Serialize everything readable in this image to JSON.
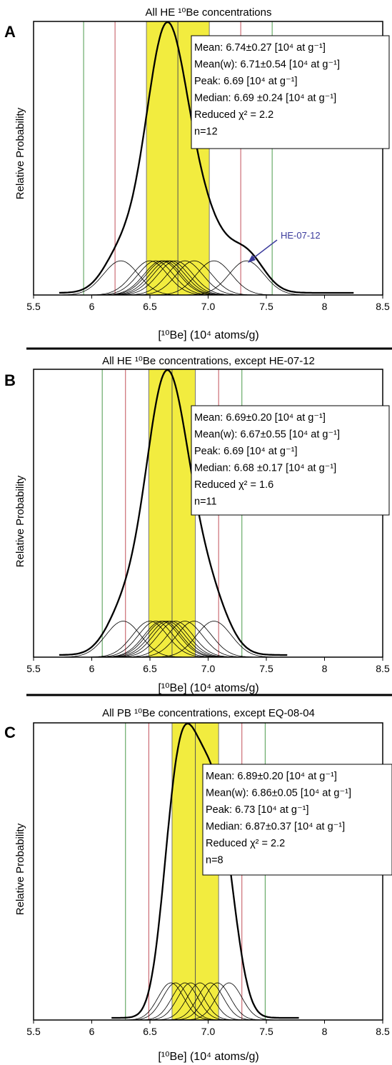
{
  "chart_data": [
    {
      "type": "line",
      "panel": "A",
      "title": "All HE ¹⁰Be concentrations",
      "xlabel": "[¹⁰Be] (10⁴ atoms/g)",
      "ylabel": "Relative Probability",
      "xlim": [
        5.5,
        8.5
      ],
      "xticks": [
        "5.5",
        "6",
        "6.5",
        "7.0",
        "7.5",
        "8",
        "8.5"
      ],
      "mean": 6.74,
      "band": [
        6.47,
        7.01
      ],
      "red_lines": [
        6.2,
        7.28
      ],
      "green_lines": [
        5.93,
        7.55
      ],
      "samples": [
        6.25,
        6.5,
        6.55,
        6.6,
        6.62,
        6.65,
        6.68,
        6.72,
        6.8,
        6.88,
        7.05,
        7.33
      ],
      "sample_sigma": 0.15,
      "summary_range": [
        5.72,
        8.25
      ],
      "annotation": "HE-07-12",
      "stats": [
        "Mean: 6.74±0.27 [10⁴ at g⁻¹]",
        "Mean(w): 6.71±0.54 [10⁴ at g⁻¹]",
        "Peak: 6.69 [10⁴ at g⁻¹]",
        "Median: 6.69 ±0.24 [10⁴ at g⁻¹]",
        "Reduced χ² = 2.2",
        "n=12"
      ]
    },
    {
      "type": "line",
      "panel": "B",
      "title": "All HE ¹⁰Be concentrations, except HE-07-12",
      "xlabel": "[¹⁰Be] (10⁴ atoms/g)",
      "ylabel": "Relative Probability",
      "xlim": [
        5.5,
        8.5
      ],
      "xticks": [
        "5.5",
        "6",
        "6.5",
        "7.0",
        "7.5",
        "8",
        "8.5"
      ],
      "mean": 6.69,
      "band": [
        6.49,
        6.89
      ],
      "red_lines": [
        6.29,
        7.09
      ],
      "green_lines": [
        6.09,
        7.29
      ],
      "samples": [
        6.27,
        6.5,
        6.55,
        6.6,
        6.62,
        6.65,
        6.68,
        6.72,
        6.8,
        6.88,
        7.05
      ],
      "sample_sigma": 0.15,
      "summary_range": [
        5.72,
        7.68
      ],
      "stats": [
        "Mean: 6.69±0.20 [10⁴ at g⁻¹]",
        "Mean(w): 6.67±0.55 [10⁴ at g⁻¹]",
        "Peak: 6.69 [10⁴ at g⁻¹]",
        "Median: 6.68 ±0.17 [10⁴ at g⁻¹]",
        "Reduced χ² = 1.6",
        "n=11"
      ]
    },
    {
      "type": "line",
      "panel": "C",
      "title": "All PB ¹⁰Be concentrations, except EQ-08-04",
      "xlabel": "[¹⁰Be] (10⁴ atoms/g)",
      "ylabel": "Relative Probability",
      "xlim": [
        5.5,
        8.5
      ],
      "xticks": [
        "5.5",
        "6",
        "6.5",
        "7.0",
        "7.5",
        "8",
        "8.5"
      ],
      "mean": 6.89,
      "band": [
        6.69,
        7.09
      ],
      "red_lines": [
        6.49,
        7.29
      ],
      "green_lines": [
        6.29,
        7.49
      ],
      "samples": [
        6.68,
        6.72,
        6.8,
        6.85,
        6.93,
        7.02,
        7.08,
        7.18
      ],
      "sample_sigma": 0.11,
      "summary_range": [
        6.17,
        7.78
      ],
      "stats": [
        "Mean: 6.89±0.20 [10⁴ at g⁻¹]",
        "Mean(w): 6.86±0.05 [10⁴ at g⁻¹]",
        "Peak: 6.73 [10⁴ at g⁻¹]",
        "Median: 6.87±0.37 [10⁴ at g⁻¹]",
        "Reduced χ² = 2.2",
        "n=8"
      ]
    }
  ],
  "colors": {
    "band": "#f2ec3f",
    "red_line": "#c2505a",
    "green_line": "#4c9a4c",
    "mean_line": "#555555",
    "annotation": "#3b3b9c"
  }
}
